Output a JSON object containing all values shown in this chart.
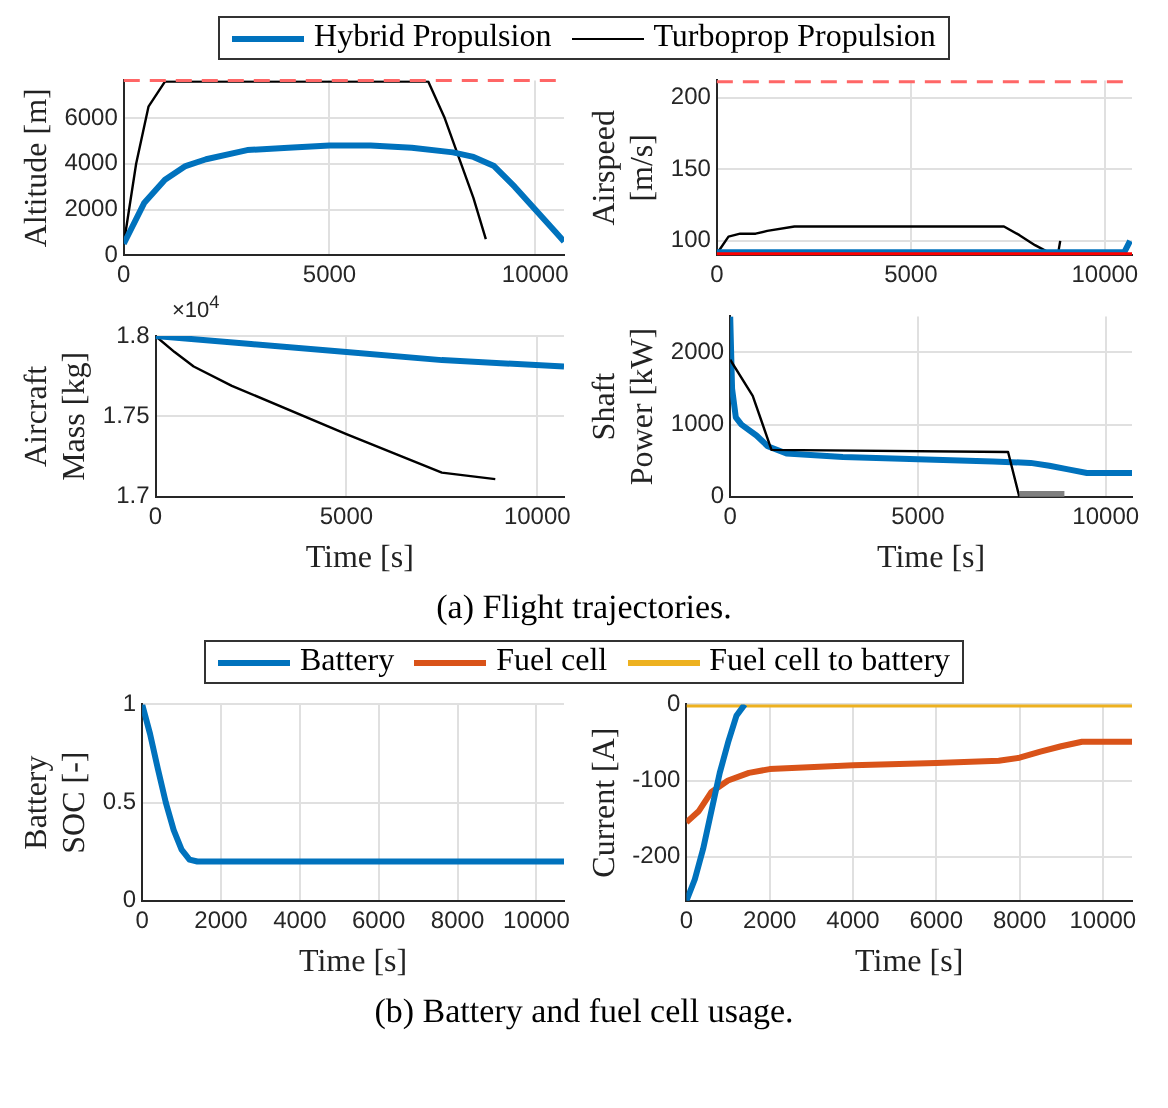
{
  "chart_data": [
    {
      "type": "line",
      "ylabel": "Altitude [m]",
      "legend": "top",
      "grid": true,
      "xlim": [
        0,
        10700
      ],
      "xticks": [
        0,
        5000,
        10000
      ],
      "ylim": [
        0,
        7650
      ],
      "yticks": [
        0,
        2000,
        4000,
        6000
      ],
      "series": [
        {
          "name": "Hybrid Propulsion",
          "color": "#0072bd",
          "x": [
            0,
            500,
            1000,
            1500,
            2000,
            3000,
            4000,
            5000,
            6000,
            7000,
            8000,
            8500,
            9000,
            9500,
            10000,
            10500,
            10700
          ],
          "values": [
            500,
            2300,
            3300,
            3900,
            4200,
            4600,
            4700,
            4800,
            4800,
            4700,
            4500,
            4300,
            3900,
            3000,
            2000,
            1000,
            600
          ]
        },
        {
          "name": "Turboprop Propulsion",
          "color": "#000000",
          "x": [
            0,
            300,
            600,
            1000,
            7400,
            7800,
            8200,
            8500,
            8800
          ],
          "values": [
            500,
            4000,
            6500,
            7600,
            7600,
            6000,
            4000,
            2500,
            700
          ]
        }
      ],
      "ref_lines": [
        {
          "axis": "y",
          "value": 7650,
          "color": "#ff6666",
          "line_style": "dashed"
        }
      ],
      "annotations": [
        "(a) Flight trajectories."
      ]
    },
    {
      "type": "line",
      "ylabel": "Airspeed [m/s]",
      "grid": true,
      "xlim": [
        0,
        10700
      ],
      "xticks": [
        0,
        5000,
        10000
      ],
      "ylim": [
        90,
        212
      ],
      "yticks": [
        100,
        150,
        200
      ],
      "series": [
        {
          "color": "#0072bd",
          "x": [
            0,
            10500,
            10650
          ],
          "values": [
            92,
            92,
            100
          ]
        },
        {
          "color": "#000000",
          "x": [
            0,
            300,
            600,
            1000,
            1300,
            2000,
            7400,
            7800,
            8200,
            8550,
            8800,
            8850
          ],
          "values": [
            91,
            103,
            105,
            105,
            107,
            110,
            110,
            104,
            97,
            92,
            92,
            100
          ]
        }
      ],
      "ref_lines": [
        {
          "axis": "y",
          "value": 211,
          "color": "#ff6666",
          "line_style": "dashed"
        },
        {
          "axis": "y",
          "value": 91,
          "color": "#ff0000",
          "line_style": "solid"
        }
      ]
    },
    {
      "type": "line",
      "xlabel": "Time [s]",
      "ylabel": "Aircraft Mass [kg]",
      "grid": true,
      "xlim": [
        0,
        10700
      ],
      "xticks": [
        0,
        5000,
        10000
      ],
      "ylim": [
        1.7,
        1.8
      ],
      "yticks": [
        1.7,
        1.75,
        1.8
      ],
      "series": [
        {
          "color": "#0072bd",
          "x": [
            0,
            2500,
            5000,
            7500,
            10700
          ],
          "values": [
            1.8,
            1.795,
            1.79,
            1.785,
            1.781
          ]
        },
        {
          "color": "#000000",
          "x": [
            0,
            500,
            1000,
            2000,
            5000,
            7500,
            8900
          ],
          "values": [
            1.8,
            1.79,
            1.781,
            1.769,
            1.739,
            1.715,
            1.711
          ]
        }
      ],
      "annotations": [
        "×10$^{4}$"
      ]
    },
    {
      "type": "line",
      "xlabel": "Time [s]",
      "ylabel": "Shaft Power [kW]",
      "grid": true,
      "xlim": [
        0,
        10700
      ],
      "xticks": [
        0,
        5000,
        10000
      ],
      "ylim": [
        0,
        2500
      ],
      "yticks": [
        0,
        1000,
        2000
      ],
      "series": [
        {
          "color": "#808080",
          "x": [
            7700,
            8900
          ],
          "values": [
            40,
            40
          ]
        },
        {
          "color": "#000000",
          "x": [
            0,
            600,
            1100,
            7400,
            7700
          ],
          "values": [
            1900,
            1400,
            650,
            620,
            0
          ]
        },
        {
          "color": "#0072bd",
          "x": [
            0,
            50,
            150,
            300,
            700,
            1000,
            1500,
            3000,
            5000,
            7000,
            8000,
            8500,
            9000,
            9500,
            10000,
            10700
          ],
          "values": [
            2500,
            1500,
            1100,
            1000,
            850,
            700,
            600,
            550,
            520,
            490,
            470,
            430,
            380,
            330,
            330,
            330
          ]
        }
      ]
    },
    {
      "type": "line",
      "xlabel": "Time [s]",
      "ylabel": "Battery SOC [-]",
      "legend": "top",
      "grid": true,
      "xlim": [
        0,
        10700
      ],
      "xticks": [
        0,
        2000,
        4000,
        6000,
        8000,
        10000
      ],
      "ylim": [
        0,
        1
      ],
      "yticks": [
        0,
        0.5,
        1
      ],
      "series": [
        {
          "name": "Battery",
          "color": "#0072bd",
          "x": [
            0,
            200,
            400,
            600,
            800,
            1000,
            1200,
            1400,
            10700
          ],
          "values": [
            1,
            0.85,
            0.67,
            0.5,
            0.36,
            0.26,
            0.21,
            0.2,
            0.2
          ]
        },
        {
          "name": "Fuel cell",
          "color": "#d95319"
        },
        {
          "name": "Fuel cell to battery",
          "color": "#edb120"
        }
      ],
      "annotations": [
        "(b) Battery and fuel cell usage."
      ]
    },
    {
      "type": "line",
      "xlabel": "Time [s]",
      "ylabel": "Current [A]",
      "grid": true,
      "xlim": [
        0,
        10700
      ],
      "xticks": [
        0,
        2000,
        4000,
        6000,
        8000,
        10000
      ],
      "ylim": [
        -258,
        0
      ],
      "yticks": [
        -200,
        -100,
        0
      ],
      "series": [
        {
          "color": "#0072bd",
          "x": [
            0,
            200,
            400,
            600,
            800,
            1000,
            1200,
            1400
          ],
          "values": [
            -258,
            -230,
            -190,
            -140,
            -90,
            -50,
            -15,
            0
          ]
        },
        {
          "color": "#d95319",
          "x": [
            0,
            300,
            600,
            1000,
            1500,
            2000,
            4000,
            6000,
            7500,
            8000,
            8500,
            9000,
            9500,
            10700
          ],
          "values": [
            -155,
            -140,
            -115,
            -100,
            -90,
            -85,
            -80,
            -77,
            -74,
            -70,
            -62,
            -55,
            -49,
            -49
          ]
        },
        {
          "color": "#edb120",
          "x": [
            0,
            10700
          ],
          "values": [
            0,
            0
          ]
        }
      ]
    }
  ]
}
